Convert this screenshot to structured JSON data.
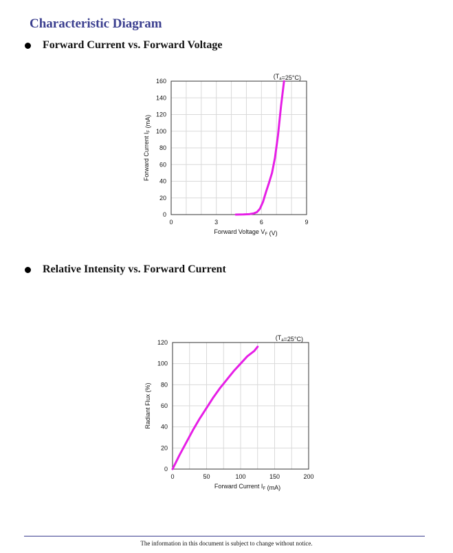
{
  "title": "Characteristic Diagram",
  "sections": [
    {
      "label": "Forward Current vs. Forward Voltage"
    },
    {
      "label": "Relative Intensity vs. Forward Current"
    }
  ],
  "footer": "The information in this document is subject to change without notice.",
  "colors": {
    "heading": "#3b3f8f",
    "curve": "#e61ee6",
    "grid": "#d9d9d9"
  },
  "chart_data": [
    {
      "type": "line",
      "annotation": "(Ta=25°C)",
      "xlabel": "Forward Voltage VF (V)",
      "ylabel": "Forward Current IF (mA)",
      "xlim": [
        0,
        9
      ],
      "ylim": [
        0,
        160
      ],
      "xticks": [
        0,
        3,
        6,
        9
      ],
      "yticks": [
        0,
        20,
        40,
        60,
        80,
        100,
        120,
        140,
        160
      ],
      "grid": true,
      "series": [
        {
          "x": [
            4.3,
            4.8,
            5.2,
            5.5,
            5.7,
            5.9,
            6.1,
            6.3,
            6.5,
            6.7,
            6.9,
            7.1,
            7.3,
            7.5
          ],
          "y": [
            0,
            0.2,
            0.5,
            1.5,
            3,
            7,
            15,
            27,
            38,
            50,
            68,
            95,
            130,
            160
          ]
        }
      ]
    },
    {
      "type": "line",
      "annotation": "(Ta=25°C)",
      "xlabel": "Forward Current IF (mA)",
      "ylabel": "Radiant Flux (%)",
      "xlim": [
        0,
        200
      ],
      "ylim": [
        0,
        120
      ],
      "xticks": [
        0,
        50,
        100,
        150,
        200
      ],
      "yticks": [
        0,
        20,
        40,
        60,
        80,
        100,
        120
      ],
      "grid": true,
      "series": [
        {
          "x": [
            0,
            10,
            20,
            30,
            40,
            50,
            60,
            70,
            80,
            90,
            100,
            110,
            120,
            125
          ],
          "y": [
            0,
            13,
            25,
            37,
            48,
            58,
            68,
            77,
            85,
            93,
            100,
            107,
            112,
            116
          ]
        }
      ]
    }
  ]
}
